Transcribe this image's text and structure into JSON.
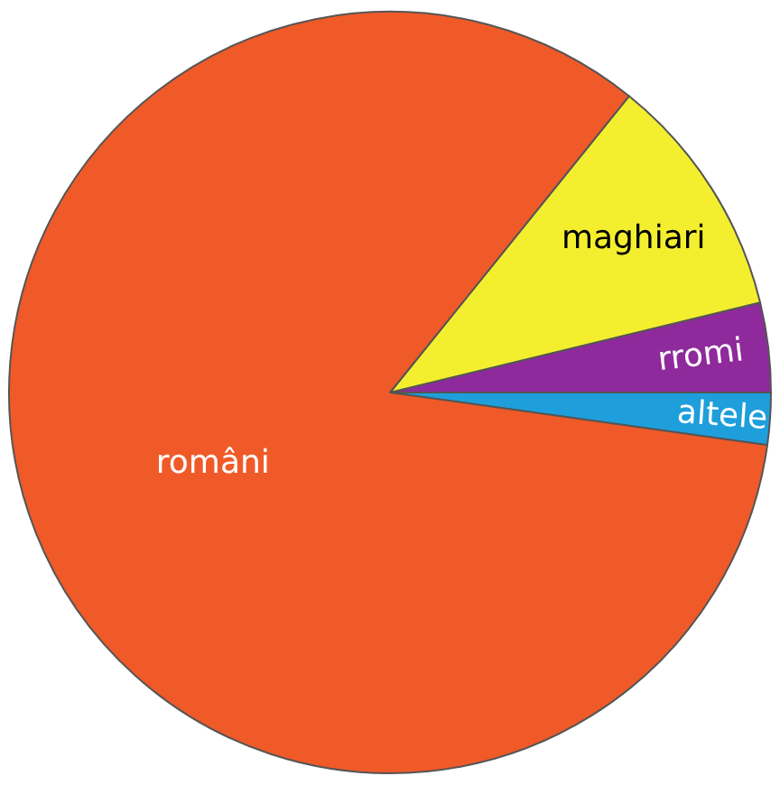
{
  "chart_data": {
    "type": "pie",
    "categories": [
      "altele",
      "rromi",
      "maghiari",
      "români"
    ],
    "values": [
      2.2,
      3.8,
      10.4,
      83.6
    ],
    "colors": [
      "#1e9fdc",
      "#8e2a9b",
      "#f4ef2e",
      "#f05a28"
    ],
    "legend": false
  }
}
